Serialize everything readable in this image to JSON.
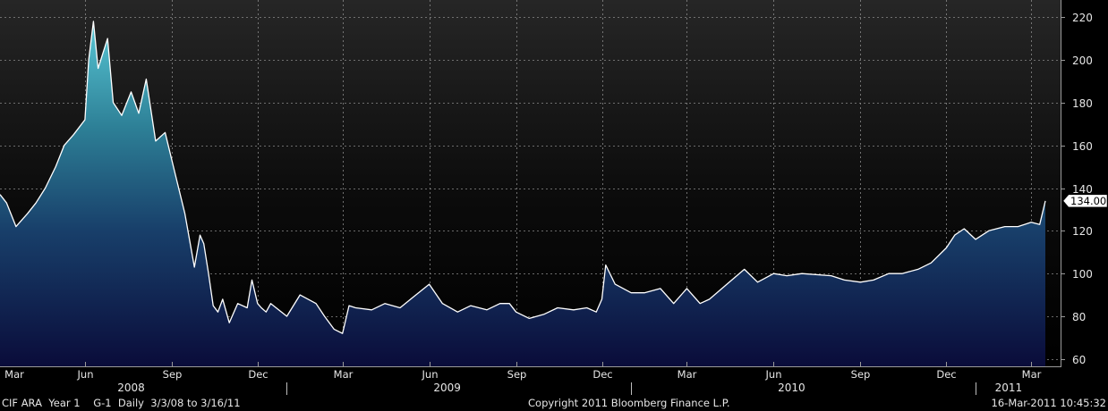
{
  "chart_data": {
    "type": "area",
    "title": "",
    "xlabel": "",
    "ylabel": "",
    "ylim": [
      56.6,
      228
    ],
    "yticks": [
      60,
      80,
      100,
      120,
      140,
      160,
      180,
      200,
      220
    ],
    "grid": true,
    "date_range": [
      "2008-03-03",
      "2011-03-16"
    ],
    "month_ticks": [
      {
        "label": "Mar",
        "date": "2008-03-01"
      },
      {
        "label": "Jun",
        "date": "2008-06-01"
      },
      {
        "label": "Sep",
        "date": "2008-09-01"
      },
      {
        "label": "Dec",
        "date": "2008-12-01"
      },
      {
        "label": "Mar",
        "date": "2009-03-01"
      },
      {
        "label": "Jun",
        "date": "2009-06-01"
      },
      {
        "label": "Sep",
        "date": "2009-09-01"
      },
      {
        "label": "Dec",
        "date": "2009-12-01"
      },
      {
        "label": "Mar",
        "date": "2010-03-01"
      },
      {
        "label": "Jun",
        "date": "2010-06-01"
      },
      {
        "label": "Sep",
        "date": "2010-09-01"
      },
      {
        "label": "Dec",
        "date": "2010-12-01"
      },
      {
        "label": "Mar",
        "date": "2011-03-01"
      }
    ],
    "years": [
      {
        "label": "2008",
        "date": "2008-07-20"
      },
      {
        "label": "2009",
        "date": "2009-06-20"
      },
      {
        "label": "2010",
        "date": "2010-06-20"
      },
      {
        "label": "2011",
        "date": "2011-02-05"
      }
    ],
    "year_dividers": [
      "2009-01-01",
      "2010-01-01",
      "2011-01-01"
    ],
    "last_value": "134.00",
    "series": [
      {
        "x": [
          "2008-03-03",
          "2008-03-10",
          "2008-03-20",
          "2008-04-01",
          "2008-04-10",
          "2008-04-20",
          "2008-05-01",
          "2008-05-10",
          "2008-05-20",
          "2008-06-01",
          "2008-06-05",
          "2008-06-10",
          "2008-06-15",
          "2008-06-25",
          "2008-07-01",
          "2008-07-10",
          "2008-07-20",
          "2008-07-28",
          "2008-08-05",
          "2008-08-15",
          "2008-08-25",
          "2008-09-05",
          "2008-09-15",
          "2008-09-25",
          "2008-10-01",
          "2008-10-05",
          "2008-10-10",
          "2008-10-15",
          "2008-10-20",
          "2008-10-25",
          "2008-11-01",
          "2008-11-10",
          "2008-11-20",
          "2008-11-25",
          "2008-12-01",
          "2008-12-05",
          "2008-12-10",
          "2008-12-15",
          "2009-01-01",
          "2009-01-15",
          "2009-02-01",
          "2009-02-10",
          "2009-02-20",
          "2009-03-01",
          "2009-03-08",
          "2009-03-15",
          "2009-04-01",
          "2009-04-15",
          "2009-05-01",
          "2009-05-15",
          "2009-06-01",
          "2009-06-15",
          "2009-07-01",
          "2009-07-15",
          "2009-08-01",
          "2009-08-15",
          "2009-08-25",
          "2009-09-01",
          "2009-09-15",
          "2009-10-01",
          "2009-10-15",
          "2009-11-01",
          "2009-11-15",
          "2009-11-25",
          "2009-12-01",
          "2009-12-05",
          "2009-12-15",
          "2010-01-01",
          "2010-01-15",
          "2010-02-01",
          "2010-02-15",
          "2010-03-01",
          "2010-03-15",
          "2010-03-25",
          "2010-04-15",
          "2010-05-01",
          "2010-05-15",
          "2010-06-01",
          "2010-06-15",
          "2010-07-01",
          "2010-08-01",
          "2010-08-15",
          "2010-09-01",
          "2010-09-15",
          "2010-10-01",
          "2010-10-15",
          "2010-11-01",
          "2010-11-15",
          "2010-12-01",
          "2010-12-10",
          "2010-12-20",
          "2011-01-01",
          "2011-01-15",
          "2011-02-01",
          "2011-02-15",
          "2011-03-01",
          "2011-03-10",
          "2011-03-16"
        ],
        "y": [
          137,
          133,
          122,
          128,
          133,
          140,
          150,
          160,
          165,
          172,
          200,
          218,
          196,
          210,
          180,
          174,
          185,
          175,
          191,
          162,
          166,
          146,
          128,
          103,
          118,
          114,
          100,
          85,
          82,
          88,
          77,
          86,
          84,
          97,
          86,
          84,
          82,
          86,
          80,
          90,
          86,
          80,
          74,
          72,
          85,
          84,
          83,
          86,
          84,
          89,
          95,
          86,
          82,
          85,
          83,
          86,
          86,
          82,
          79,
          81,
          84,
          83,
          84,
          82,
          88,
          104,
          95,
          91,
          91,
          93,
          86,
          93,
          86,
          88,
          96,
          102,
          96,
          100,
          99,
          100,
          99,
          97,
          96,
          97,
          100,
          100,
          102,
          105,
          112,
          118,
          121,
          116,
          120,
          122,
          122,
          124,
          123,
          134
        ]
      }
    ]
  },
  "footer": {
    "left": "CIF ARA  Year 1    G-1  Daily  3/3/08 to 3/16/11",
    "center": "Copyright 2011 Bloomberg Finance L.P.",
    "right": "16-Mar-2011 10:45:32"
  }
}
